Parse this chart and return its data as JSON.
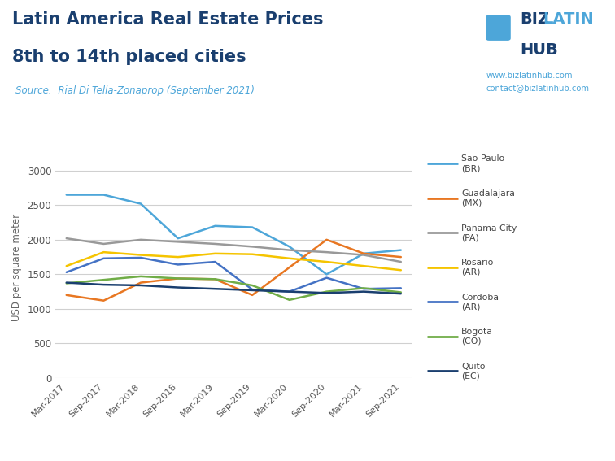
{
  "title_line1": "Latin America Real Estate Prices",
  "title_line2": "8th to 14th placed cities",
  "source": "Source:  Rial Di Tella-Zonaprop (September 2021)",
  "ylabel": "USD per square meter",
  "website1": "www.bizlatinhub.com",
  "website2": "contact@bizlatinhub.com",
  "x_labels": [
    "Mar-2017",
    "Sep-2017",
    "Mar-2018",
    "Sep-2018",
    "Mar-2019",
    "Sep-2019",
    "Mar-2020",
    "Sep-2020",
    "Mar-2021",
    "Sep-2021"
  ],
  "ylim": [
    0,
    3200
  ],
  "yticks": [
    0,
    500,
    1000,
    1500,
    2000,
    2500,
    3000
  ],
  "series": {
    "Sao Paulo\n(BR)": {
      "color": "#4da6d9",
      "values": [
        2650,
        2650,
        2520,
        2020,
        2200,
        2180,
        1900,
        1500,
        1800,
        1850
      ]
    },
    "Guadalajara\n(MX)": {
      "color": "#e87722",
      "values": [
        1200,
        1120,
        1380,
        1440,
        1430,
        1200,
        1600,
        2000,
        1800,
        1750
      ]
    },
    "Panama City\n(PA)": {
      "color": "#999999",
      "values": [
        2020,
        1940,
        2000,
        1970,
        1940,
        1900,
        1850,
        1820,
        1780,
        1680
      ]
    },
    "Rosario\n(AR)": {
      "color": "#f5c400",
      "values": [
        1620,
        1820,
        1780,
        1750,
        1800,
        1790,
        1730,
        1680,
        1620,
        1560
      ]
    },
    "Cordoba\n(AR)": {
      "color": "#4472c4",
      "values": [
        1530,
        1730,
        1740,
        1640,
        1680,
        1280,
        1250,
        1450,
        1290,
        1300
      ]
    },
    "Bogota\n(CO)": {
      "color": "#70ad47",
      "values": [
        1370,
        1420,
        1470,
        1440,
        1430,
        1340,
        1130,
        1250,
        1300,
        1240
      ]
    },
    "Quito\n(EC)": {
      "color": "#1a3f6f",
      "values": [
        1380,
        1350,
        1340,
        1310,
        1290,
        1270,
        1250,
        1230,
        1250,
        1220
      ]
    }
  },
  "background_color": "#ffffff",
  "grid_color": "#d0d0d0",
  "title_color": "#1a3f6f",
  "source_color": "#4da6d9"
}
